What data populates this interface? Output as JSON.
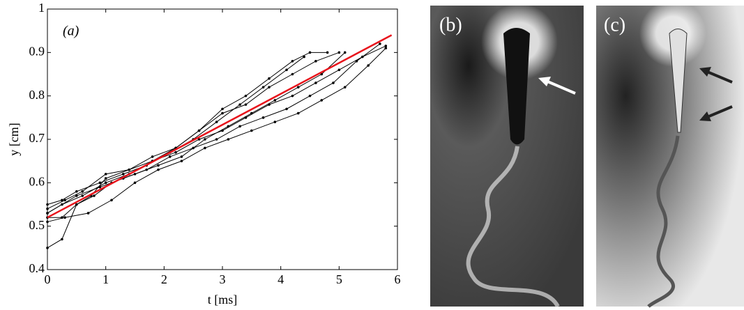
{
  "chart_data": {
    "type": "line",
    "annotation": "(a)",
    "x_label": "t [ms]",
    "y_label": "y [cm]",
    "xlim": [
      0,
      6
    ],
    "ylim": [
      0.4,
      1
    ],
    "xticks": [
      0,
      1,
      2,
      3,
      4,
      5,
      6
    ],
    "yticks": [
      0.4,
      0.5,
      0.6,
      0.7,
      0.8,
      0.9,
      1
    ],
    "series": [
      {
        "color": "#000000",
        "markers": true,
        "x": [
          0,
          0.25,
          0.5,
          0.75,
          1,
          1.4,
          1.8,
          2.2,
          2.6,
          3,
          3.4,
          3.8,
          4.2,
          4.5,
          4.8
        ],
        "values": [
          0.45,
          0.47,
          0.55,
          0.57,
          0.61,
          0.63,
          0.65,
          0.68,
          0.72,
          0.77,
          0.8,
          0.84,
          0.88,
          0.9,
          0.9
        ]
      },
      {
        "color": "#000000",
        "markers": true,
        "x": [
          0,
          0.25,
          0.5,
          0.8,
          1.1,
          1.5,
          1.9,
          2.3,
          2.7,
          3.1,
          3.5,
          3.9,
          4.3,
          4.7,
          5.1
        ],
        "values": [
          0.52,
          0.52,
          0.55,
          0.57,
          0.6,
          0.62,
          0.64,
          0.66,
          0.7,
          0.73,
          0.76,
          0.79,
          0.82,
          0.85,
          0.9
        ]
      },
      {
        "color": "#000000",
        "markers": true,
        "x": [
          0,
          0.3,
          0.7,
          1.1,
          1.5,
          1.9,
          2.3,
          2.7,
          3.1,
          3.5,
          3.9,
          4.3,
          4.7,
          5.1,
          5.5,
          5.8
        ],
        "values": [
          0.51,
          0.52,
          0.53,
          0.56,
          0.6,
          0.63,
          0.65,
          0.68,
          0.7,
          0.72,
          0.74,
          0.76,
          0.79,
          0.82,
          0.87,
          0.91
        ]
      },
      {
        "color": "#000000",
        "markers": true,
        "x": [
          0,
          0.25,
          0.6,
          1,
          1.4,
          1.8,
          2.2,
          2.6,
          3,
          3.4,
          3.8,
          4.2,
          4.6,
          5,
          5.4,
          5.8
        ],
        "values": [
          0.53,
          0.55,
          0.57,
          0.6,
          0.62,
          0.65,
          0.67,
          0.7,
          0.72,
          0.75,
          0.78,
          0.8,
          0.83,
          0.86,
          0.89,
          0.915
        ]
      },
      {
        "color": "#000000",
        "markers": true,
        "x": [
          0,
          0.3,
          0.6,
          1,
          1.4,
          1.8,
          2.2,
          2.6,
          3,
          3.4,
          3.8,
          4.2,
          4.6,
          5
        ],
        "values": [
          0.54,
          0.56,
          0.58,
          0.62,
          0.63,
          0.66,
          0.68,
          0.72,
          0.76,
          0.78,
          0.82,
          0.85,
          0.88,
          0.9
        ]
      },
      {
        "color": "#000000",
        "markers": true,
        "x": [
          0,
          0.25,
          0.5,
          0.9,
          1.3,
          1.7,
          2.1,
          2.5,
          2.9,
          3.3,
          3.7,
          4.1,
          4.5,
          4.9,
          5.3,
          5.7
        ],
        "values": [
          0.53,
          0.55,
          0.57,
          0.59,
          0.61,
          0.63,
          0.66,
          0.68,
          0.7,
          0.73,
          0.75,
          0.77,
          0.8,
          0.83,
          0.88,
          0.92
        ]
      },
      {
        "color": "#000000",
        "markers": true,
        "x": [
          0,
          0.25,
          0.5,
          0.9,
          1.3,
          1.7,
          2.1,
          2.5,
          2.9,
          3.3,
          3.7,
          4.1,
          4.4
        ],
        "values": [
          0.55,
          0.56,
          0.58,
          0.6,
          0.62,
          0.64,
          0.67,
          0.7,
          0.74,
          0.78,
          0.82,
          0.86,
          0.89
        ]
      },
      {
        "color": "#e8141c",
        "markers": false,
        "x": [
          0,
          5.9
        ],
        "values": [
          0.52,
          0.94
        ]
      }
    ]
  },
  "panels": [
    {
      "label": "(b)"
    },
    {
      "label": "(c)"
    }
  ]
}
